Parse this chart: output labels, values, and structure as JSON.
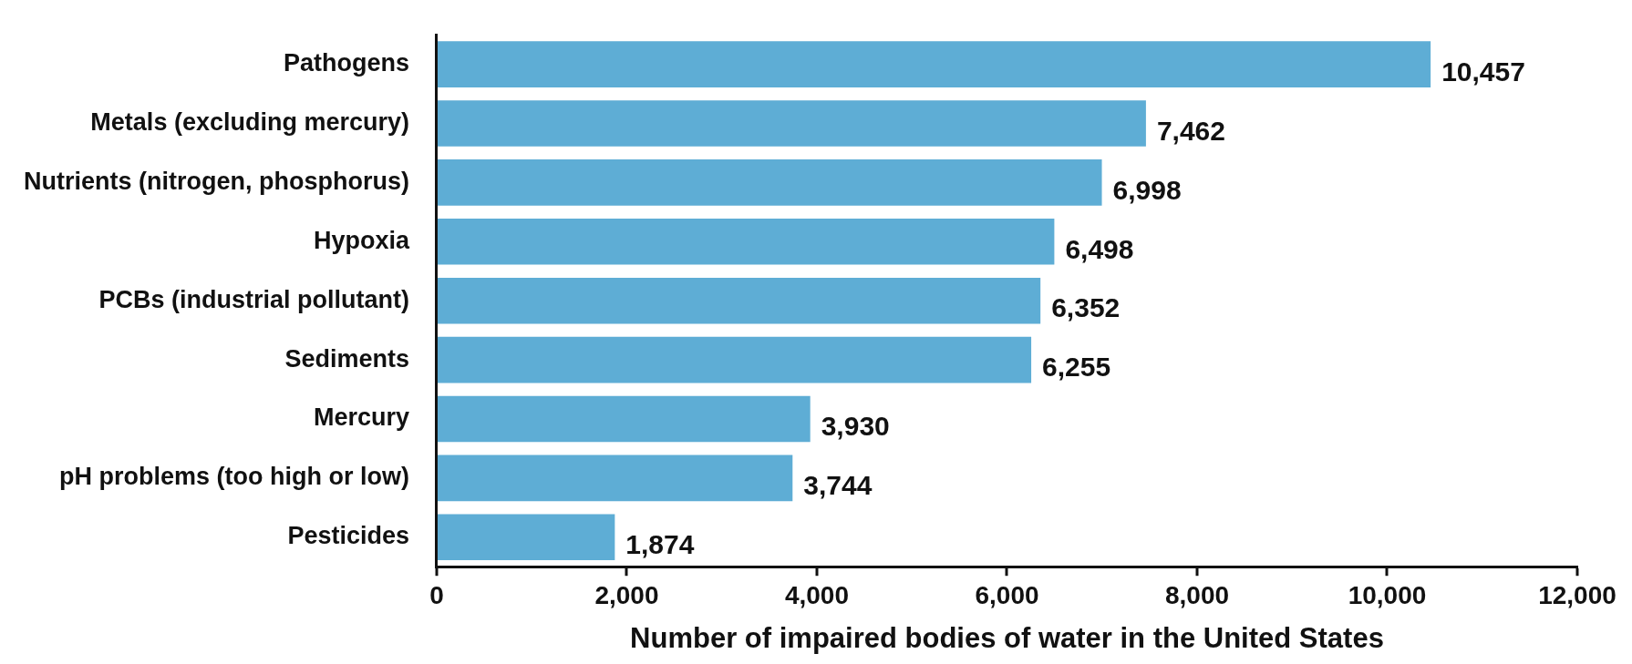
{
  "chart_data": {
    "type": "bar",
    "orientation": "horizontal",
    "categories": [
      "Pathogens",
      "Metals (excluding mercury)",
      "Nutrients (nitrogen, phosphorus)",
      "Hypoxia",
      "PCBs (industrial pollutant)",
      "Sediments",
      "Mercury",
      "pH problems (too high or low)",
      "Pesticides"
    ],
    "values": [
      10457,
      7462,
      6998,
      6498,
      6352,
      6255,
      3930,
      3744,
      1874
    ],
    "value_labels": [
      "10,457",
      "7,462",
      "6,998",
      "6,498",
      "6,352",
      "6,255",
      "3,930",
      "3,744",
      "1,874"
    ],
    "color": "#5eadd5",
    "xlabel": "Number of impaired bodies of water in the United States",
    "xlim": [
      0,
      12000
    ],
    "xticks": [
      0,
      {
        "value": 2000,
        "label": "2,000"
      },
      {
        "value": 4000,
        "label": "4,000"
      },
      {
        "value": 6000,
        "label": "6,000"
      },
      {
        "value": 8000,
        "label": "8,000"
      },
      {
        "value": 10000,
        "label": "10,000"
      },
      {
        "value": 12000,
        "label": "12,000"
      }
    ],
    "grid": false,
    "legend": false
  }
}
